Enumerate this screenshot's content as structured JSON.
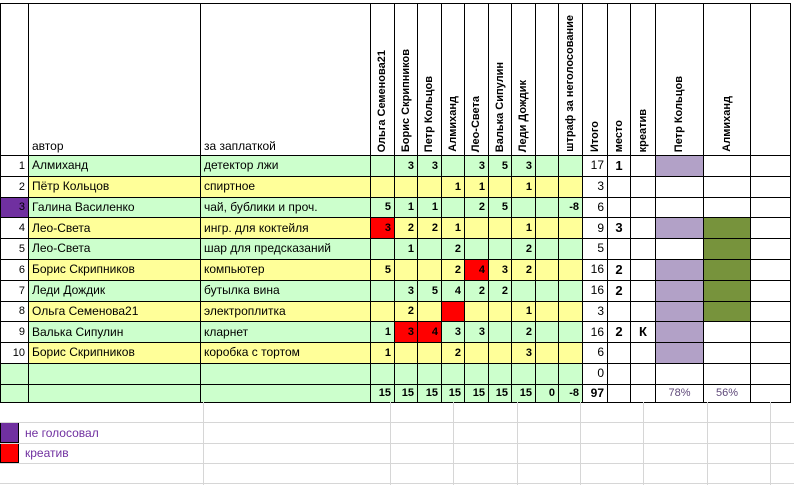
{
  "colors": {
    "row_green": "#CCFFCC",
    "row_yellow": "#FFFF99",
    "red": "#FF0000",
    "purple": "#7030A0",
    "lavender": "#B2A1C7",
    "olive": "#77933C",
    "percent_text": "#5F497A",
    "legend_text": "#7030A0"
  },
  "table": {
    "corner": "",
    "author_header": "автор",
    "item_header": "за заплаткой",
    "score_headers": [
      "Ольга Семенова21",
      "Борис Скрипников",
      "Петр Кольцов",
      "Алмиханд",
      "Лео-Света",
      "Валька Сипулин",
      "Леди Дождик",
      "",
      "штраф за неголосование"
    ],
    "total_header": "Итого",
    "place_header": "место",
    "creative_header": "креатив",
    "track_headers": [
      "Петр Кольцов",
      "Алмиханд"
    ],
    "rows": [
      {
        "num": "1",
        "author": "Алмиханд",
        "item": "детектор лжи",
        "scores": [
          "",
          "3",
          "3",
          "",
          "3",
          "5",
          "3",
          "",
          ""
        ],
        "red_cells": [],
        "total": "17",
        "place": "1",
        "creative": "",
        "petr_mark": true,
        "alm_mark": false,
        "num_highlight": false
      },
      {
        "num": "2",
        "author": "Пётр Кольцов",
        "item": "спиртное",
        "scores": [
          "",
          "",
          "",
          "1",
          "1",
          "",
          "1",
          "",
          ""
        ],
        "red_cells": [],
        "total": "3",
        "place": "",
        "creative": "",
        "petr_mark": false,
        "alm_mark": false,
        "num_highlight": false
      },
      {
        "num": "3",
        "author": "Галина Василенко",
        "item": "чай, бублики и проч.",
        "scores": [
          "5",
          "1",
          "1",
          "",
          "2",
          "5",
          "",
          "",
          "-8"
        ],
        "red_cells": [],
        "total": "6",
        "place": "",
        "creative": "",
        "petr_mark": false,
        "alm_mark": false,
        "num_highlight": true
      },
      {
        "num": "4",
        "author": "Лео-Света",
        "item": "ингр. для коктейля",
        "scores": [
          "3",
          "2",
          "2",
          "1",
          "",
          "",
          "1",
          "",
          ""
        ],
        "red_cells": [
          0
        ],
        "total": "9",
        "place": "3",
        "creative": "",
        "petr_mark": true,
        "alm_mark": true,
        "num_highlight": false
      },
      {
        "num": "5",
        "author": "Лео-Света",
        "item": "шар для предсказаний",
        "scores": [
          "",
          "1",
          "",
          "2",
          "",
          "",
          "2",
          "",
          ""
        ],
        "red_cells": [],
        "total": "5",
        "place": "",
        "creative": "",
        "petr_mark": false,
        "alm_mark": true,
        "num_highlight": false
      },
      {
        "num": "6",
        "author": "Борис Скрипников",
        "item": "компьютер",
        "scores": [
          "5",
          "",
          "",
          "2",
          "4",
          "3",
          "2",
          "",
          ""
        ],
        "red_cells": [
          4
        ],
        "total": "16",
        "place": "2",
        "creative": "",
        "petr_mark": true,
        "alm_mark": true,
        "num_highlight": false
      },
      {
        "num": "7",
        "author": "Леди Дождик",
        "item": "бутылка вина",
        "scores": [
          "",
          "3",
          "5",
          "4",
          "2",
          "2",
          "",
          "",
          ""
        ],
        "red_cells": [],
        "total": "16",
        "place": "2",
        "creative": "",
        "petr_mark": true,
        "alm_mark": true,
        "num_highlight": false
      },
      {
        "num": "8",
        "author": "Ольга Семенова21",
        "item": "электроплитка",
        "scores": [
          "",
          "2",
          "",
          "",
          "",
          "",
          "1",
          "",
          ""
        ],
        "red_cells": [
          3
        ],
        "total": "3",
        "place": "",
        "creative": "",
        "petr_mark": true,
        "alm_mark": true,
        "num_highlight": false
      },
      {
        "num": "9",
        "author": "Валька Сипулин",
        "item": "кларнет",
        "scores": [
          "1",
          "3",
          "4",
          "3",
          "3",
          "",
          "2",
          "",
          ""
        ],
        "red_cells": [
          1,
          2
        ],
        "total": "16",
        "place": "2",
        "creative": "К",
        "petr_mark": true,
        "alm_mark": false,
        "num_highlight": false
      },
      {
        "num": "10",
        "author": "Борис Скрипников",
        "item": "коробка с тортом",
        "scores": [
          "1",
          "",
          "",
          "2",
          "",
          "",
          "3",
          "",
          ""
        ],
        "red_cells": [],
        "total": "6",
        "place": "",
        "creative": "",
        "petr_mark": true,
        "alm_mark": false,
        "num_highlight": false
      }
    ],
    "blank_row": {
      "total": "0"
    },
    "totals_row": {
      "scores": [
        "15",
        "15",
        "15",
        "15",
        "15",
        "15",
        "15",
        "0",
        "-8"
      ],
      "total": "97",
      "petr_percent": "78%",
      "alm_percent": "56%"
    }
  },
  "legend": {
    "items": [
      {
        "label": "не голосовал",
        "color": "#7030A0"
      },
      {
        "label": "креатив",
        "color": "#FF0000"
      }
    ]
  }
}
